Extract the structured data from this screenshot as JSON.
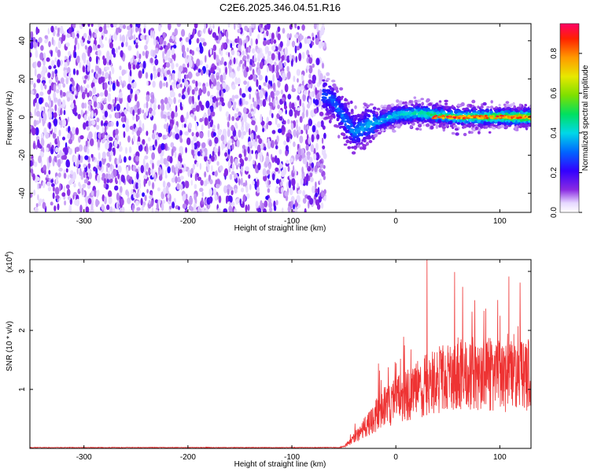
{
  "title": "C2E6.2025.346.04.51.R16",
  "chart_data": [
    {
      "type": "heatmap",
      "xlabel": "Height of straight line (km)",
      "ylabel": "Frequency (Hz)",
      "xlim": [
        -352,
        130
      ],
      "ylim": [
        -50,
        49
      ],
      "xticks": [
        -300,
        -200,
        -100,
        0,
        100
      ],
      "yticks": [
        -40,
        -20,
        0,
        20,
        40
      ],
      "xtick_labels": [
        "-300",
        "-200",
        "-100",
        "0",
        "100"
      ],
      "ytick_labels": [
        "-40",
        "-20",
        "0",
        "20",
        "40"
      ],
      "noise_region_x": [
        -352,
        -68
      ],
      "signal_trace": {
        "x": [
          -70,
          -60,
          -50,
          -40,
          -30,
          -20,
          -10,
          0,
          20,
          40,
          60,
          80,
          100,
          120,
          130
        ],
        "y": [
          12,
          8,
          0,
          -8,
          -5,
          -3,
          -1,
          1,
          2,
          1,
          0,
          0,
          0,
          0,
          0
        ]
      },
      "colorbar": {
        "label": "Normalized spectral amplitude",
        "range": [
          0,
          0.95
        ],
        "ticks": [
          0.0,
          0.2,
          0.4,
          0.6,
          0.8
        ],
        "tick_labels": [
          "0.0",
          "0.2",
          "0.4",
          "0.6",
          "0.8"
        ]
      }
    },
    {
      "type": "line",
      "xlabel": "Height of straight line (km)",
      "ylabel": "SNR (10 * v/v)",
      "yscale_label": "(x10",
      "yscale_exp": "4",
      "yscale_close": ")",
      "xlim": [
        -352,
        130
      ],
      "ylim": [
        0,
        3.2
      ],
      "xticks": [
        -300,
        -200,
        -100,
        0,
        100
      ],
      "yticks": [
        1,
        2,
        3
      ],
      "xtick_labels": [
        "-300",
        "-200",
        "-100",
        "0",
        "100"
      ],
      "ytick_labels": [
        "1",
        "2",
        "3"
      ],
      "series": [
        {
          "color": "#ee3333",
          "envelope_x": [
            -352,
            -60,
            -50,
            -40,
            -30,
            -20,
            -10,
            0,
            10,
            20,
            30,
            40,
            50,
            60,
            70,
            80,
            90,
            100,
            110,
            120,
            130
          ],
          "envelope_y": [
            0.0,
            0.0,
            0.03,
            0.2,
            0.4,
            0.6,
            0.8,
            0.9,
            1.0,
            1.1,
            1.2,
            1.3,
            1.35,
            1.4,
            1.4,
            1.4,
            1.4,
            1.35,
            1.35,
            1.4,
            1.4
          ],
          "peak": {
            "x": 30,
            "y": 3.2
          }
        }
      ]
    }
  ]
}
